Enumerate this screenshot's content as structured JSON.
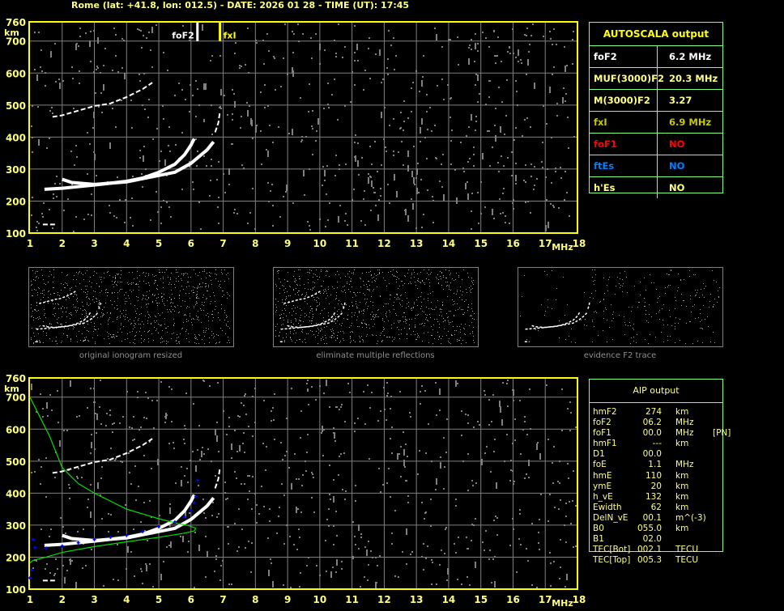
{
  "header": {
    "title": "Rome (lat: +41.8, lon: 012.5) - DATE: 2026 01 28 - TIME (UT): 17:45"
  },
  "colors": {
    "axis": "#ffff00",
    "tick_label": "#ffff80",
    "grid": "#808080",
    "trace": "#ffffff",
    "noise": "#808080",
    "profile": "#00e000",
    "aip_points": "#0000ff",
    "table_border": "#80ff80"
  },
  "chart_data": [
    {
      "type": "scatter",
      "name_label": "",
      "xlabel": "MHz",
      "ylabel": "km",
      "xlim": [
        1,
        18
      ],
      "ylim": [
        100,
        760
      ],
      "xticks": [
        "1",
        "2",
        "3",
        "4",
        "5",
        "6",
        "7",
        "8",
        "9",
        "10",
        "11",
        "12",
        "13",
        "14",
        "15",
        "16",
        "17",
        "18"
      ],
      "yticks": [
        "100",
        "200",
        "300",
        "400",
        "500",
        "600",
        "700",
        "760"
      ],
      "grid": true,
      "markers": [
        {
          "label": "foF2",
          "freq": 6.2,
          "color": "#ffffff"
        },
        {
          "label": "fxI",
          "freq": 6.9,
          "color": "#ffff00"
        }
      ],
      "traces": [
        [
          [
            1.45,
            237
          ],
          [
            2,
            240
          ],
          [
            3,
            250
          ],
          [
            4,
            262
          ],
          [
            4.5,
            272
          ],
          [
            5,
            290
          ],
          [
            5.5,
            315
          ],
          [
            5.8,
            345
          ],
          [
            6.0,
            375
          ],
          [
            6.1,
            395
          ]
        ],
        [
          [
            2,
            268
          ],
          [
            2.3,
            258
          ],
          [
            3,
            252
          ],
          [
            4,
            260
          ],
          [
            5,
            280
          ],
          [
            5.5,
            290
          ],
          [
            6,
            318
          ],
          [
            6.5,
            360
          ],
          [
            6.7,
            385
          ]
        ],
        [
          [
            6.75,
            415
          ],
          [
            6.85,
            445
          ],
          [
            6.9,
            480
          ]
        ],
        [
          [
            1.7,
            463
          ],
          [
            2,
            468
          ],
          [
            3,
            497
          ],
          [
            3.5,
            505
          ],
          [
            4,
            525
          ],
          [
            4.5,
            550
          ],
          [
            4.8,
            570
          ]
        ],
        [
          [
            1.4,
            127
          ],
          [
            1.8,
            127
          ]
        ]
      ]
    },
    {
      "type": "scatter",
      "xlabel": "MHz",
      "ylabel": "km",
      "xlim": [
        1,
        18
      ],
      "ylim": [
        100,
        760
      ],
      "xticks": [
        "1",
        "2",
        "3",
        "4",
        "5",
        "6",
        "7",
        "8",
        "9",
        "10",
        "11",
        "12",
        "13",
        "14",
        "15",
        "16",
        "17",
        "18"
      ],
      "yticks": [
        "100",
        "200",
        "300",
        "400",
        "500",
        "600",
        "700",
        "760"
      ],
      "grid": true,
      "profile": [
        [
          1,
          700
        ],
        [
          1.3,
          640
        ],
        [
          1.6,
          580
        ],
        [
          2,
          480
        ],
        [
          2.5,
          430
        ],
        [
          3,
          400
        ],
        [
          3.5,
          375
        ],
        [
          4,
          350
        ],
        [
          4.5,
          335
        ],
        [
          5,
          320
        ],
        [
          5.6,
          305
        ],
        [
          5.95,
          298
        ],
        [
          6.15,
          290
        ],
        [
          6.1,
          282
        ],
        [
          5.8,
          275
        ],
        [
          5,
          262
        ],
        [
          4,
          248
        ],
        [
          3,
          233
        ],
        [
          2,
          215
        ],
        [
          1.5,
          200
        ],
        [
          1.1,
          190
        ],
        [
          1,
          182
        ]
      ],
      "aip_points": [
        [
          1,
          135
        ],
        [
          1.05,
          160
        ],
        [
          1.1,
          255
        ],
        [
          1.15,
          230
        ],
        [
          1.5,
          228
        ],
        [
          2,
          235
        ],
        [
          2.5,
          245
        ],
        [
          3,
          255
        ],
        [
          3.5,
          262
        ],
        [
          4,
          268
        ],
        [
          4.5,
          280
        ],
        [
          5,
          295
        ],
        [
          5.5,
          310
        ],
        [
          5.8,
          325
        ],
        [
          6,
          345
        ],
        [
          6.1,
          370
        ],
        [
          6.15,
          390
        ],
        [
          6.2,
          440
        ]
      ]
    }
  ],
  "thumbnails": [
    {
      "caption": "original ionogram resized"
    },
    {
      "caption": "eliminate multiple reflections"
    },
    {
      "caption": "evidence F2 trace"
    }
  ],
  "autoscala": {
    "title": "AUTOSCALA output",
    "rows": [
      {
        "key": "foF2",
        "value": "6.2 MHz",
        "color": "#ffffff"
      },
      {
        "key": "MUF(3000)F2",
        "value": "20.3 MHz",
        "color": "#ffff80"
      },
      {
        "key": "M(3000)F2",
        "value": "3.27",
        "color": "#ffff80"
      },
      {
        "key": "fxI",
        "value": "6.9 MHz",
        "color": "#c8c800"
      },
      {
        "key": "foF1",
        "value": "NO",
        "color": "#ff0000"
      },
      {
        "key": "ftEs",
        "value": "NO",
        "color": "#0080ff"
      },
      {
        "key": "h'Es",
        "value": "NO",
        "color": "#ffff80"
      }
    ]
  },
  "aip": {
    "title": "AIP output",
    "rows": [
      {
        "name": "hmF2",
        "value": "274",
        "unit": "km",
        "extra": ""
      },
      {
        "name": "foF2",
        "value": "06.2",
        "unit": "MHz",
        "extra": ""
      },
      {
        "name": "foF1",
        "value": "00.0",
        "unit": "MHz",
        "extra": "[PN]"
      },
      {
        "name": "hmF1",
        "value": "---",
        "unit": "km",
        "extra": ""
      },
      {
        "name": "D1",
        "value": "00.0",
        "unit": "",
        "extra": ""
      },
      {
        "name": "foE",
        "value": "1.1",
        "unit": "MHz",
        "extra": ""
      },
      {
        "name": "hmE",
        "value": "110",
        "unit": "km",
        "extra": ""
      },
      {
        "name": "ymE",
        "value": "20",
        "unit": "km",
        "extra": ""
      },
      {
        "name": "h_vE",
        "value": "132",
        "unit": "km",
        "extra": ""
      },
      {
        "name": "Ewidth",
        "value": "62",
        "unit": "km",
        "extra": ""
      },
      {
        "name": "DelN_vE",
        "value": "00.1",
        "unit": "m^(-3)",
        "extra": ""
      },
      {
        "name": "B0",
        "value": "055.0",
        "unit": "km",
        "extra": ""
      },
      {
        "name": "B1",
        "value": "02.0",
        "unit": "",
        "extra": ""
      },
      {
        "name": "TEC[Bot]",
        "value": "002.1",
        "unit": "TECU",
        "extra": ""
      },
      {
        "name": "TEC[Top]",
        "value": "005.3",
        "unit": "TECU",
        "extra": ""
      }
    ]
  }
}
